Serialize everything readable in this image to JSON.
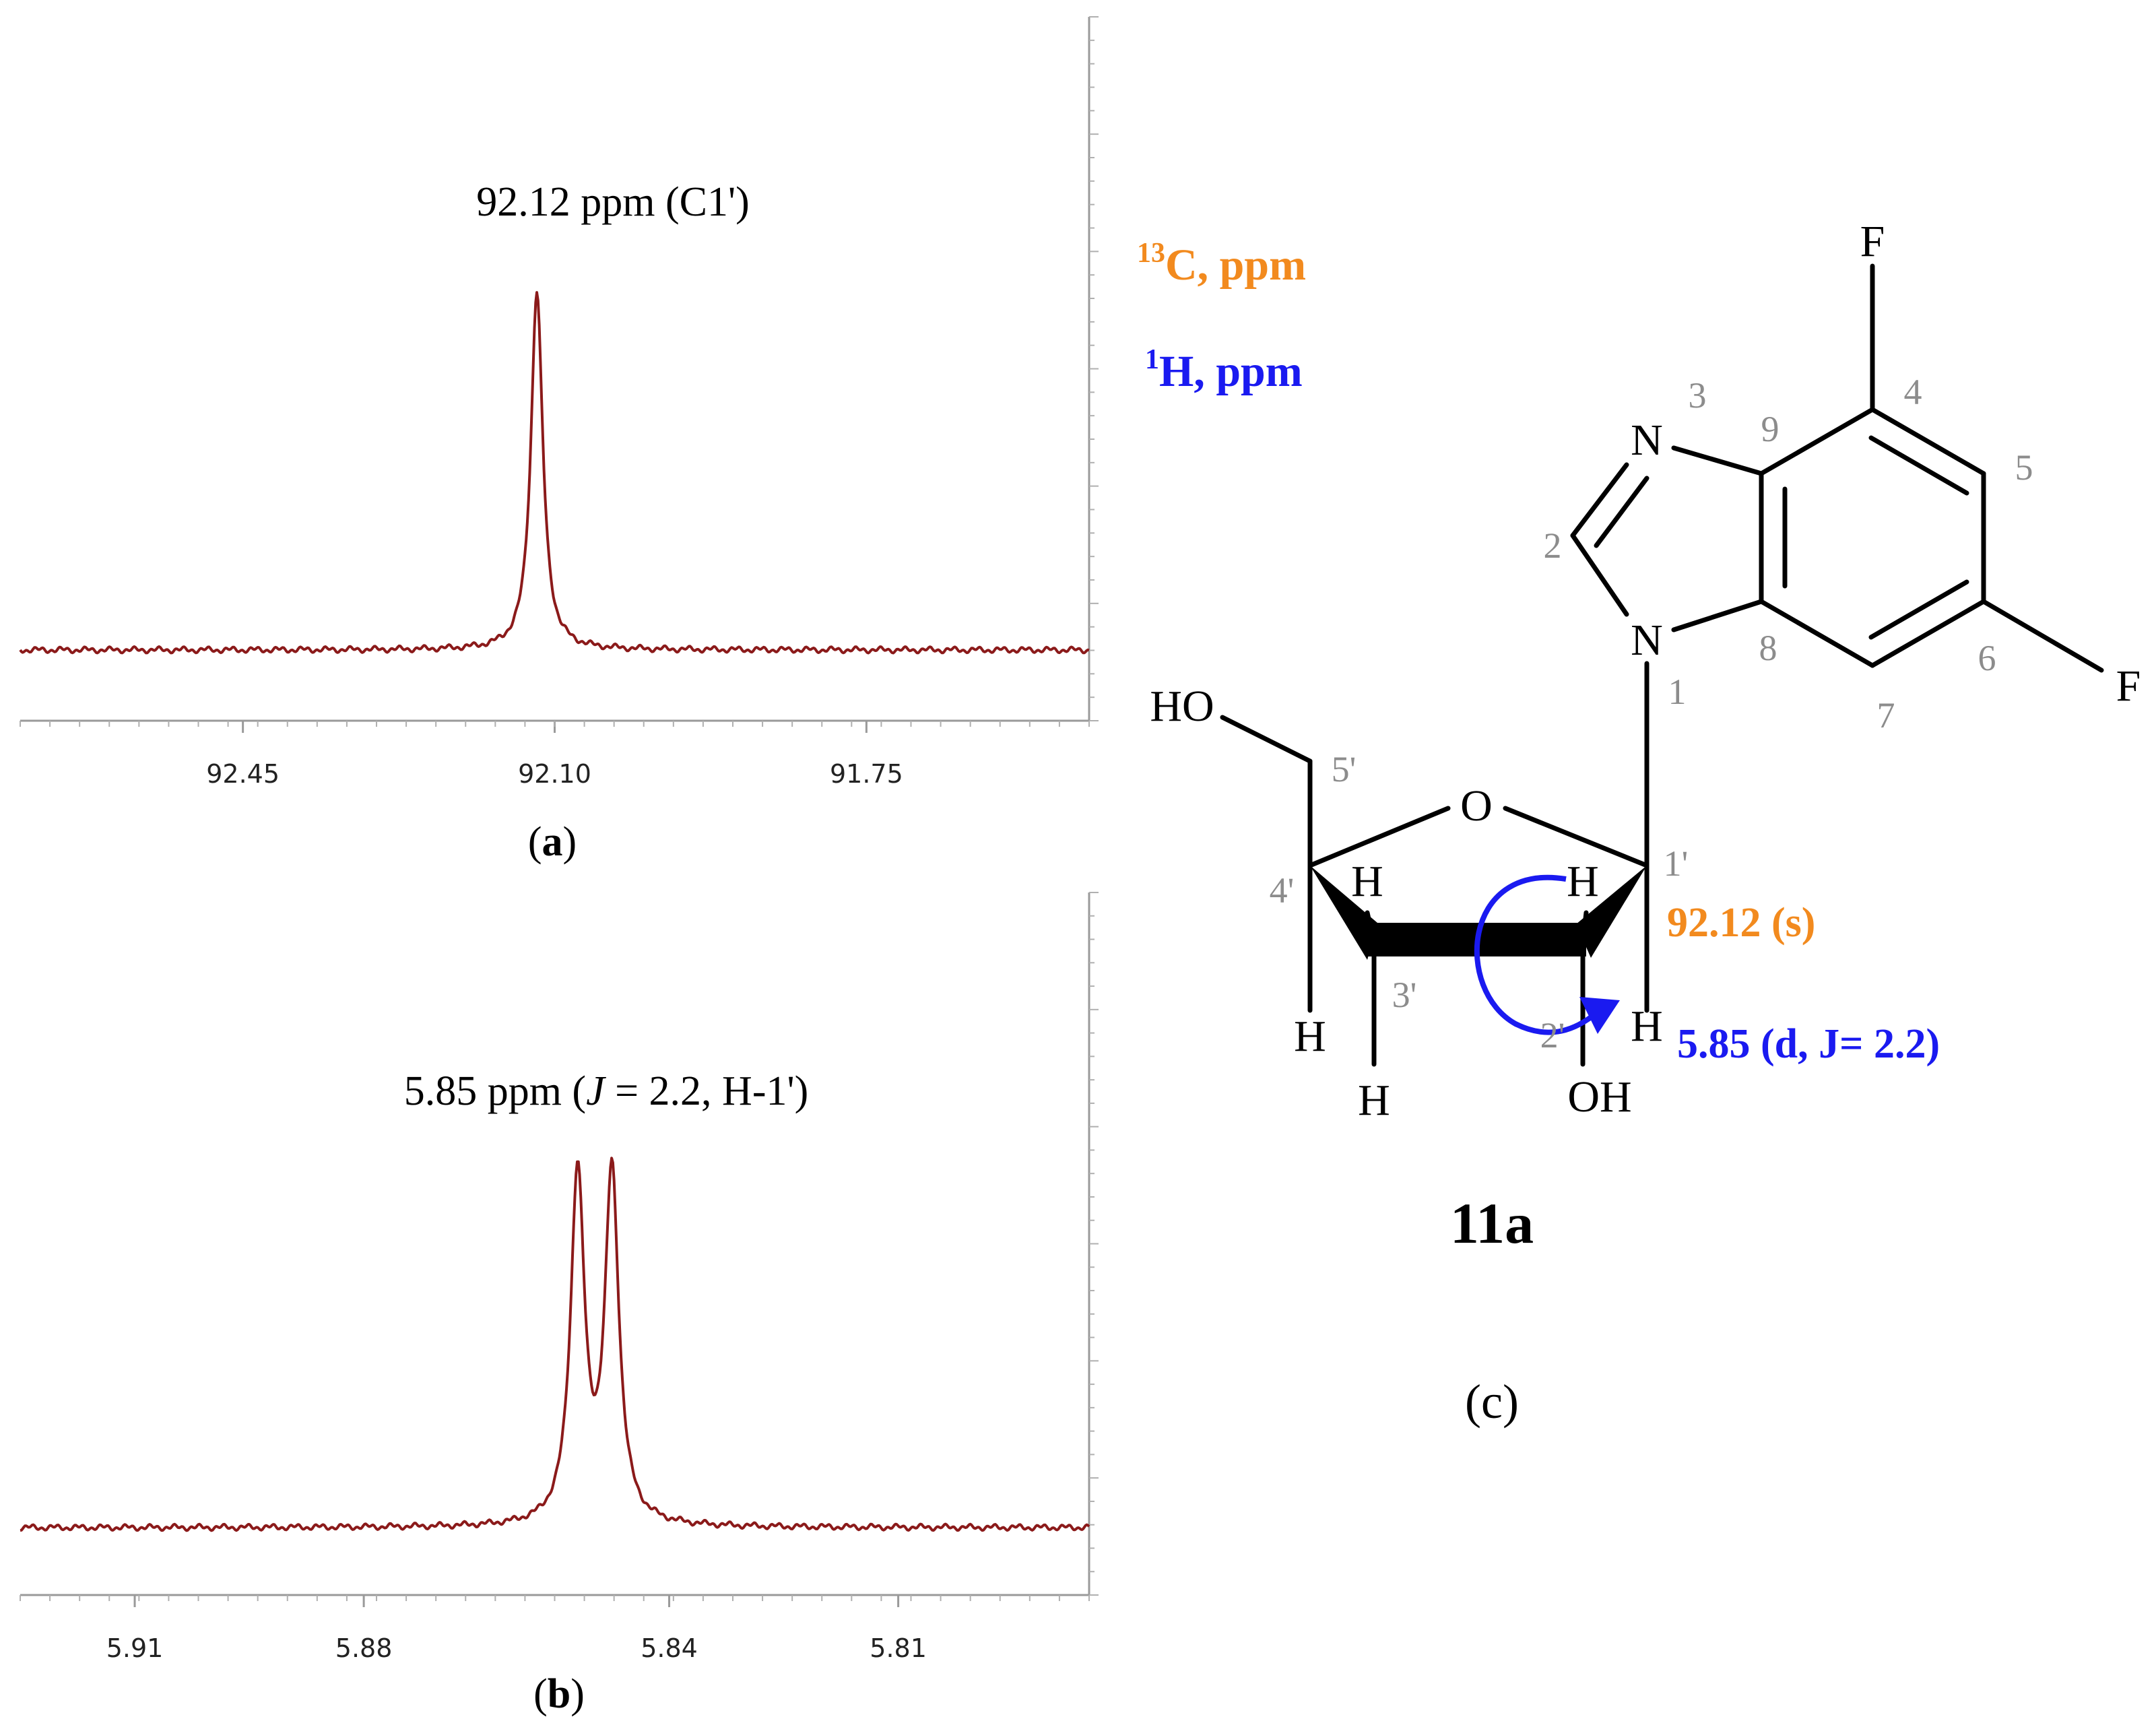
{
  "chart_data": [
    {
      "type": "line",
      "panel_label": "a",
      "annotation": "92.12 ppm (C1')",
      "xlabel": "",
      "ylabel": "",
      "xlim": [
        92.7,
        91.5
      ],
      "x_reversed": true,
      "xticks": [
        92.45,
        92.1,
        91.75
      ],
      "xtick_labels": [
        "92.45",
        "92.10",
        "91.75"
      ],
      "grid": false,
      "series": [
        {
          "color": "#8b1a1a",
          "peaks": [
            {
              "x": 92.12,
              "height": 1.0
            }
          ],
          "width": 0.016
        }
      ]
    },
    {
      "type": "line",
      "panel_label": "b",
      "annotation_parts": [
        "5.85 ppm (",
        "J",
        " = 2.2, H-1')"
      ],
      "xlabel": "",
      "ylabel": "",
      "xlim": [
        5.925,
        5.785
      ],
      "x_reversed": true,
      "xticks": [
        5.91,
        5.88,
        5.84,
        5.81
      ],
      "xtick_labels": [
        "5.91",
        "5.88",
        "5.84",
        "5.81"
      ],
      "grid": false,
      "series": [
        {
          "color": "#8b1a1a",
          "peaks": [
            {
              "x": 5.852,
              "height": 1.0
            },
            {
              "x": 5.8475,
              "height": 1.0
            }
          ],
          "width": 0.0022
        }
      ]
    }
  ],
  "structure": {
    "panel_label": "c",
    "compound_label": "11a",
    "legend": {
      "c13_sup": "13",
      "c13_text": "C, ppm",
      "h1_sup": "1",
      "h1_text": "H, ppm",
      "c13_color": "#f28a1e",
      "h1_color": "#1a1af0"
    },
    "shift_c": "92.12 (s)",
    "shift_h": "5.85 (d, J= 2.2)",
    "atoms": {
      "F": "F",
      "N": "N",
      "O": "O",
      "H": "H",
      "HO": "HO",
      "OH": "OH"
    },
    "numbers": [
      "1",
      "2",
      "3",
      "4",
      "5",
      "6",
      "7",
      "8",
      "9",
      "1'",
      "2'",
      "3'",
      "4'",
      "5'"
    ]
  }
}
